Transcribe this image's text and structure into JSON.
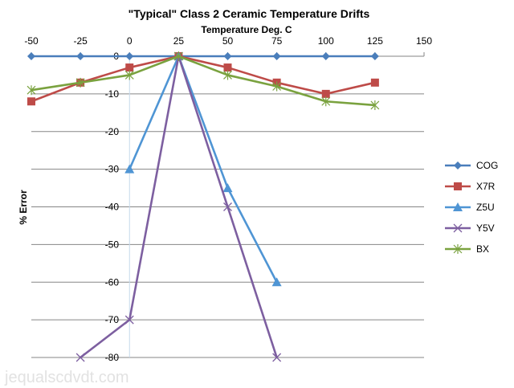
{
  "chart_data": {
    "type": "line",
    "title": "\"Typical\" Class 2 Ceramic Temperature Drifts",
    "xlabel": "Temperature Deg. C",
    "ylabel": "% Error",
    "xlim": [
      -50,
      150
    ],
    "ylim": [
      -80,
      0
    ],
    "x_ticks": [
      "-50",
      "-25",
      "0",
      "25",
      "50",
      "75",
      "100",
      "125",
      "150"
    ],
    "y_ticks": [
      "0",
      "-10",
      "-20",
      "-30",
      "-40",
      "-50",
      "-60",
      "-70",
      "-80"
    ],
    "x_axis_position": "top",
    "grid": "horizontal",
    "legend_position": "right",
    "series": [
      {
        "name": "COG",
        "color": "#4a7ebb",
        "marker": "diamond",
        "x": [
          -50,
          -25,
          0,
          25,
          50,
          75,
          100,
          125
        ],
        "y": [
          0,
          0,
          0,
          0,
          0,
          0,
          0,
          0
        ]
      },
      {
        "name": "X7R",
        "color": "#be4b48",
        "marker": "square",
        "x": [
          -50,
          -25,
          0,
          25,
          50,
          75,
          100,
          125
        ],
        "y": [
          -12,
          -7,
          -3,
          0,
          -3,
          -7,
          -10,
          -7
        ]
      },
      {
        "name": "Z5U",
        "color": "#4f95d4",
        "marker": "triangle",
        "x": [
          0,
          25,
          50,
          75
        ],
        "y": [
          -30,
          0,
          -35,
          -60
        ]
      },
      {
        "name": "Y5V",
        "color": "#7d5fa0",
        "marker": "x",
        "x": [
          -25,
          0,
          25,
          50,
          75
        ],
        "y": [
          -80,
          -70,
          0,
          -40,
          -80
        ]
      },
      {
        "name": "BX",
        "color": "#7aa23f",
        "marker": "star",
        "x": [
          -50,
          -25,
          0,
          25,
          50,
          75,
          100,
          125
        ],
        "y": [
          -9,
          -7,
          -5,
          0,
          -5,
          -8,
          -12,
          -13
        ]
      }
    ]
  },
  "watermark": "jequalscdvdt.com"
}
